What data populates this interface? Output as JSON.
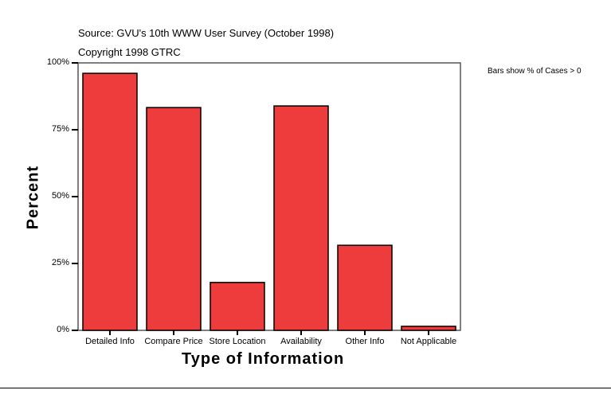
{
  "chart_data": {
    "type": "bar",
    "subtitle_lines": [
      "Source: GVU's 10th WWW User Survey (October 1998)",
      "Copyright 1998 GTRC"
    ],
    "note": "Bars show % of Cases > 0",
    "xlabel": "Type of Information",
    "ylabel": "Percent",
    "ylim": [
      0,
      100
    ],
    "yticks": [
      0,
      25,
      50,
      75,
      100
    ],
    "ytick_labels": [
      "0%",
      "25%",
      "50%",
      "75%",
      "100%"
    ],
    "categories": [
      "Detailed Info",
      "Compare Price",
      "Store Location",
      "Availability",
      "Other Info",
      "Not Applicable"
    ],
    "values": [
      96.1,
      83.3,
      17.9,
      83.9,
      31.8,
      1.5
    ],
    "bar_color": "#ee3b3b",
    "grid": false
  }
}
